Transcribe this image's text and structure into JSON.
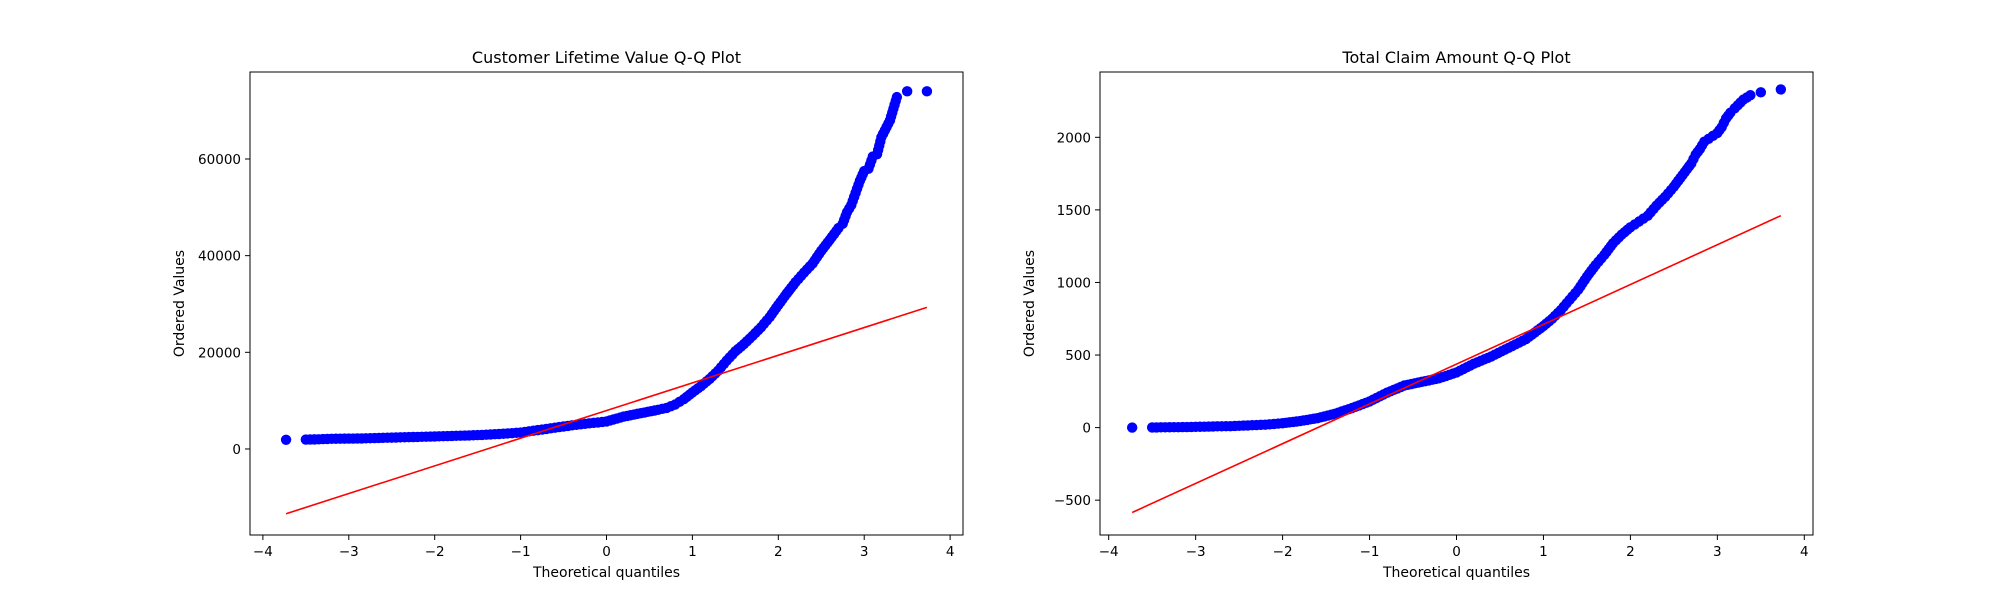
{
  "figure": {
    "background": "#ffffff"
  },
  "chart_data": [
    {
      "type": "scatter",
      "title": "Customer Lifetime Value Q-Q Plot",
      "xlabel": "Theoretical quantiles",
      "ylabel": "Ordered Values",
      "xlim": [
        -4.15,
        4.15
      ],
      "ylim": [
        -17800,
        78000
      ],
      "xticks": [
        -4,
        -3,
        -2,
        -1,
        0,
        1,
        2,
        3,
        4
      ],
      "xtick_labels": [
        "−4",
        "−3",
        "−2",
        "−1",
        "0",
        "1",
        "2",
        "3",
        "4"
      ],
      "yticks": [
        0,
        20000,
        40000,
        60000
      ],
      "ytick_labels": [
        "0",
        "20000",
        "40000",
        "60000"
      ],
      "marker_color": "#0000ff",
      "line_color": "#ff0000",
      "fit_line": {
        "x": [
          -3.73,
          3.73
        ],
        "y": [
          -13400,
          29300
        ]
      },
      "points": {
        "x": [
          -3.73,
          -3.5,
          -3.35,
          -3.3,
          -3.25,
          -3.2,
          -3.1,
          -3.0,
          -2.8,
          -2.6,
          -2.4,
          -2.2,
          -2.0,
          -1.8,
          -1.6,
          -1.4,
          -1.2,
          -1.0,
          -0.8,
          -0.6,
          -0.4,
          -0.2,
          0.0,
          0.2,
          0.4,
          0.6,
          0.7,
          0.8,
          0.9,
          1.0,
          1.1,
          1.2,
          1.3,
          1.4,
          1.5,
          1.6,
          1.7,
          1.8,
          1.9,
          2.0,
          2.1,
          2.2,
          2.3,
          2.4,
          2.5,
          2.6,
          2.7,
          2.75,
          2.8,
          2.85,
          2.9,
          2.95,
          3.0,
          3.05,
          3.1,
          3.15,
          3.2,
          3.3,
          3.38,
          3.5,
          3.73
        ],
        "y": [
          1900,
          1950,
          2000,
          2050,
          2080,
          2100,
          2130,
          2150,
          2200,
          2300,
          2400,
          2500,
          2600,
          2700,
          2800,
          2950,
          3150,
          3400,
          3900,
          4400,
          4900,
          5300,
          5700,
          6700,
          7400,
          8100,
          8500,
          9200,
          10300,
          11700,
          13000,
          14500,
          16200,
          18300,
          20200,
          21700,
          23400,
          25200,
          27300,
          29800,
          32200,
          34500,
          36500,
          38400,
          41000,
          43300,
          45700,
          46600,
          49000,
          50500,
          53000,
          55500,
          57500,
          58000,
          60500,
          61000,
          64500,
          68000,
          72800,
          74000,
          74000
        ]
      }
    },
    {
      "type": "scatter",
      "title": "Total Claim Amount Q-Q Plot",
      "xlabel": "Theoretical quantiles",
      "ylabel": "Ordered Values",
      "xlim": [
        -4.1,
        4.1
      ],
      "ylim": [
        -740,
        2450
      ],
      "xticks": [
        -4,
        -3,
        -2,
        -1,
        0,
        1,
        2,
        3,
        4
      ],
      "xtick_labels": [
        "−4",
        "−3",
        "−2",
        "−1",
        "0",
        "1",
        "2",
        "3",
        "4"
      ],
      "yticks": [
        -500,
        0,
        500,
        1000,
        1500,
        2000
      ],
      "ytick_labels": [
        "−500",
        "0",
        "500",
        "1000",
        "1500",
        "2000"
      ],
      "marker_color": "#0000ff",
      "line_color": "#ff0000",
      "fit_line": {
        "x": [
          -3.73,
          3.73
        ],
        "y": [
          -585,
          1460
        ]
      },
      "points": {
        "x": [
          -3.73,
          -3.5,
          -3.35,
          -3.2,
          -3.1,
          -3.0,
          -2.8,
          -2.6,
          -2.4,
          -2.2,
          -2.0,
          -1.8,
          -1.6,
          -1.4,
          -1.2,
          -1.0,
          -0.8,
          -0.6,
          -0.4,
          -0.2,
          0.0,
          0.2,
          0.4,
          0.6,
          0.8,
          1.0,
          1.1,
          1.2,
          1.3,
          1.4,
          1.5,
          1.6,
          1.7,
          1.8,
          1.9,
          2.0,
          2.1,
          2.2,
          2.3,
          2.4,
          2.5,
          2.6,
          2.7,
          2.75,
          2.8,
          2.85,
          2.9,
          3.0,
          3.05,
          3.1,
          3.15,
          3.2,
          3.3,
          3.38,
          3.5,
          3.73
        ],
        "y": [
          0,
          1,
          2,
          3,
          4,
          5,
          8,
          10,
          15,
          20,
          30,
          45,
          65,
          95,
          135,
          180,
          240,
          290,
          315,
          340,
          380,
          440,
          490,
          550,
          610,
          700,
          750,
          810,
          880,
          950,
          1040,
          1120,
          1190,
          1270,
          1330,
          1380,
          1420,
          1460,
          1530,
          1590,
          1660,
          1740,
          1820,
          1880,
          1920,
          1970,
          1990,
          2030,
          2070,
          2130,
          2170,
          2200,
          2260,
          2290,
          2310,
          2330
        ]
      }
    }
  ]
}
